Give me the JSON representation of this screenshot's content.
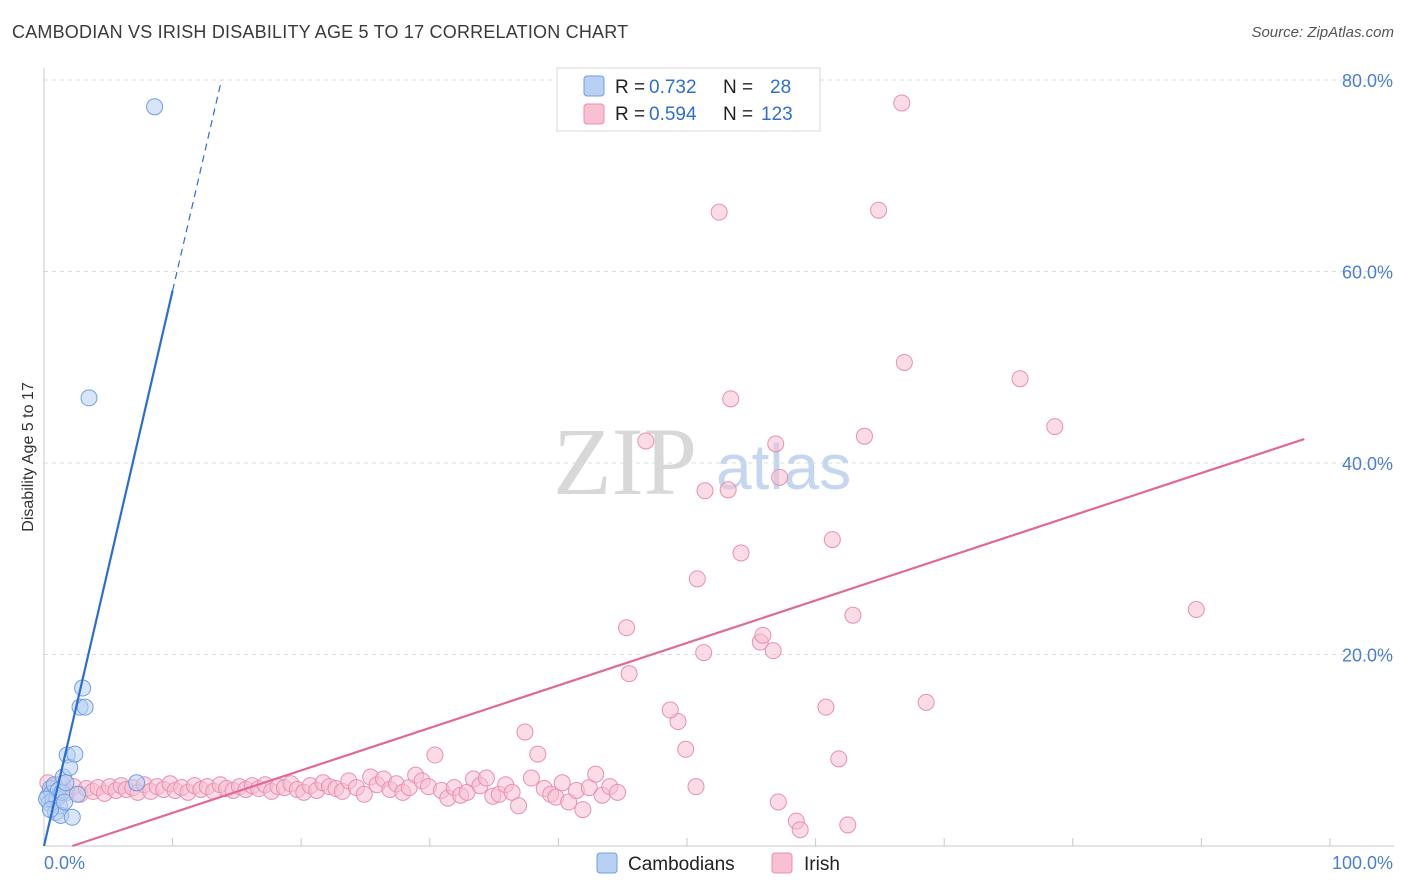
{
  "header": {
    "title": "CAMBODIAN VS IRISH DISABILITY AGE 5 TO 17 CORRELATION CHART",
    "source": "Source: ZipAtlas.com"
  },
  "watermark": {
    "zip": "ZIP",
    "atlas": "atlas"
  },
  "colors": {
    "blue_fill": "#b8d0f2",
    "blue_stroke": "#6f9fe0",
    "blue_line": "#2a6fd0",
    "pink_fill": "#f8c0d2",
    "pink_stroke": "#e890ae",
    "pink_line": "#e0689a",
    "tick_color": "#4a7fd0"
  },
  "legend": {
    "rows": [
      {
        "r_label": "R =",
        "r_value": "0.732",
        "n_label": "N =",
        "n_value": "28"
      },
      {
        "r_label": "R =",
        "r_value": "0.594",
        "n_label": "N =",
        "n_value": "123"
      }
    ]
  },
  "bottom_legend": {
    "cambodians": "Cambodians",
    "irish": "Irish"
  },
  "chart_data": {
    "type": "scatter",
    "title": "CAMBODIAN VS IRISH DISABILITY AGE 5 TO 17 CORRELATION CHART",
    "xlabel": "",
    "ylabel": "Disability Age 5 to 17",
    "xlim": [
      0,
      100
    ],
    "ylim": [
      0,
      80
    ],
    "x_tick_labels": [
      "0.0%",
      "100.0%"
    ],
    "y_ticks": [
      20,
      40,
      60,
      80
    ],
    "y_tick_labels": [
      "20.0%",
      "40.0%",
      "60.0%",
      "80.0%"
    ],
    "series": [
      {
        "name": "Cambodians",
        "r": 0.732,
        "n": 28,
        "trend": {
          "x0": 0,
          "y0": 0,
          "x1": 10,
          "y1": 58,
          "dash_to_x": 13.8,
          "dash_to_y": 80
        },
        "points": [
          [
            0.3,
            5.2
          ],
          [
            0.4,
            4.5
          ],
          [
            0.5,
            6.0
          ],
          [
            0.6,
            5.5
          ],
          [
            0.7,
            4.8
          ],
          [
            0.8,
            6.4
          ],
          [
            0.9,
            3.5
          ],
          [
            1.0,
            5.0
          ],
          [
            1.1,
            5.8
          ],
          [
            1.2,
            4.2
          ],
          [
            1.3,
            3.2
          ],
          [
            1.4,
            5.6
          ],
          [
            1.5,
            7.2
          ],
          [
            1.6,
            4.6
          ],
          [
            1.7,
            6.6
          ],
          [
            1.8,
            9.5
          ],
          [
            2.0,
            8.2
          ],
          [
            2.2,
            3.0
          ],
          [
            2.4,
            9.6
          ],
          [
            2.6,
            5.4
          ],
          [
            2.8,
            14.5
          ],
          [
            3.0,
            16.5
          ],
          [
            3.2,
            14.5
          ],
          [
            3.5,
            46.8
          ],
          [
            7.2,
            6.6
          ],
          [
            8.6,
            77.2
          ],
          [
            0.2,
            4.9
          ],
          [
            0.5,
            3.8
          ]
        ]
      },
      {
        "name": "Irish",
        "r": 0.594,
        "n": 123,
        "trend": {
          "x0": 2.2,
          "y0": 0,
          "x1": 98,
          "y1": 42.5
        },
        "points": [
          [
            0.3,
            6.6
          ],
          [
            0.6,
            5.8
          ],
          [
            0.8,
            6.2
          ],
          [
            1.1,
            5.2
          ],
          [
            1.4,
            6.5
          ],
          [
            1.8,
            5.6
          ],
          [
            2.3,
            6.2
          ],
          [
            2.8,
            5.4
          ],
          [
            3.3,
            6.0
          ],
          [
            3.8,
            5.7
          ],
          [
            4.2,
            6.1
          ],
          [
            4.7,
            5.5
          ],
          [
            5.1,
            6.2
          ],
          [
            5.6,
            5.8
          ],
          [
            6.0,
            6.3
          ],
          [
            6.4,
            5.9
          ],
          [
            6.9,
            6.1
          ],
          [
            7.3,
            5.6
          ],
          [
            7.8,
            6.4
          ],
          [
            8.3,
            5.7
          ],
          [
            8.8,
            6.2
          ],
          [
            9.3,
            5.9
          ],
          [
            9.8,
            6.5
          ],
          [
            10.2,
            5.8
          ],
          [
            10.7,
            6.1
          ],
          [
            11.2,
            5.6
          ],
          [
            11.7,
            6.3
          ],
          [
            12.2,
            5.9
          ],
          [
            12.7,
            6.2
          ],
          [
            13.2,
            5.7
          ],
          [
            13.7,
            6.4
          ],
          [
            14.2,
            6.0
          ],
          [
            14.7,
            5.8
          ],
          [
            15.2,
            6.2
          ],
          [
            15.7,
            5.9
          ],
          [
            16.2,
            6.3
          ],
          [
            16.7,
            6.0
          ],
          [
            17.2,
            6.4
          ],
          [
            17.7,
            5.7
          ],
          [
            18.2,
            6.2
          ],
          [
            18.7,
            6.1
          ],
          [
            19.2,
            6.5
          ],
          [
            19.7,
            5.9
          ],
          [
            20.2,
            5.6
          ],
          [
            20.7,
            6.3
          ],
          [
            21.2,
            5.8
          ],
          [
            21.7,
            6.6
          ],
          [
            22.2,
            6.2
          ],
          [
            22.7,
            6.0
          ],
          [
            23.2,
            5.7
          ],
          [
            23.7,
            6.8
          ],
          [
            24.3,
            6.1
          ],
          [
            24.9,
            5.4
          ],
          [
            25.4,
            7.2
          ],
          [
            25.9,
            6.4
          ],
          [
            26.4,
            7.0
          ],
          [
            26.9,
            5.9
          ],
          [
            27.4,
            6.5
          ],
          [
            27.9,
            5.6
          ],
          [
            28.4,
            6.1
          ],
          [
            28.9,
            7.4
          ],
          [
            29.4,
            6.8
          ],
          [
            29.9,
            6.2
          ],
          [
            30.4,
            9.5
          ],
          [
            30.9,
            5.8
          ],
          [
            31.4,
            5.0
          ],
          [
            31.9,
            6.1
          ],
          [
            32.4,
            5.3
          ],
          [
            32.9,
            5.6
          ],
          [
            33.4,
            7.0
          ],
          [
            33.9,
            6.3
          ],
          [
            34.4,
            7.1
          ],
          [
            34.9,
            5.2
          ],
          [
            35.4,
            5.4
          ],
          [
            35.9,
            6.4
          ],
          [
            36.4,
            5.6
          ],
          [
            36.9,
            4.2
          ],
          [
            37.4,
            11.9
          ],
          [
            37.9,
            7.1
          ],
          [
            38.4,
            9.6
          ],
          [
            38.9,
            6.0
          ],
          [
            39.4,
            5.4
          ],
          [
            39.8,
            5.1
          ],
          [
            40.3,
            6.6
          ],
          [
            40.8,
            4.6
          ],
          [
            41.4,
            5.8
          ],
          [
            41.9,
            3.8
          ],
          [
            42.4,
            6.1
          ],
          [
            42.9,
            7.5
          ],
          [
            43.4,
            5.3
          ],
          [
            44.0,
            6.2
          ],
          [
            44.6,
            5.6
          ],
          [
            45.3,
            22.8
          ],
          [
            45.5,
            18.0
          ],
          [
            46.8,
            42.3
          ],
          [
            49.3,
            13.0
          ],
          [
            48.7,
            14.2
          ],
          [
            49.9,
            10.1
          ],
          [
            50.8,
            27.9
          ],
          [
            51.3,
            20.2
          ],
          [
            50.7,
            6.2
          ],
          [
            51.4,
            37.1
          ],
          [
            52.5,
            66.2
          ],
          [
            53.2,
            37.2
          ],
          [
            53.4,
            46.7
          ],
          [
            54.2,
            30.6
          ],
          [
            55.7,
            21.3
          ],
          [
            55.9,
            22.0
          ],
          [
            56.7,
            20.4
          ],
          [
            56.9,
            42.0
          ],
          [
            57.1,
            4.6
          ],
          [
            57.2,
            38.5
          ],
          [
            58.5,
            2.6
          ],
          [
            58.8,
            1.7
          ],
          [
            60.8,
            14.5
          ],
          [
            61.3,
            32.0
          ],
          [
            62.5,
            2.2
          ],
          [
            61.8,
            9.1
          ],
          [
            62.9,
            24.1
          ],
          [
            64.9,
            66.4
          ],
          [
            66.7,
            77.6
          ],
          [
            66.9,
            50.5
          ],
          [
            68.6,
            15.0
          ],
          [
            63.8,
            42.8
          ],
          [
            75.9,
            48.8
          ],
          [
            78.6,
            43.8
          ],
          [
            89.6,
            24.7
          ]
        ]
      }
    ]
  }
}
